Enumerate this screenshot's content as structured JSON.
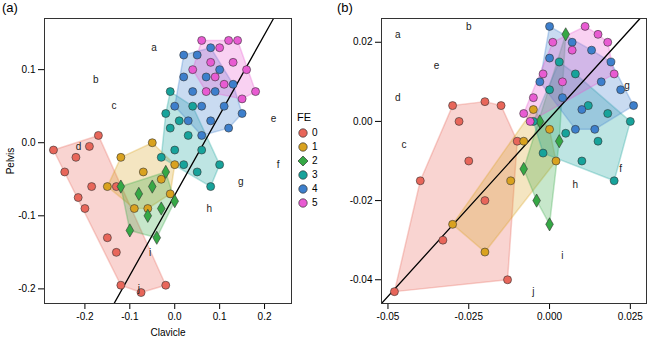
{
  "chart_data": [
    {
      "type": "scatter",
      "title": "(a)",
      "xlabel": "Clavicle",
      "ylabel": "Pelvis",
      "xlim": [
        -0.29,
        0.26
      ],
      "ylim": [
        -0.22,
        0.17
      ],
      "xticks": [
        -0.2,
        -0.1,
        {
          "value": 0,
          "label": "0.0"
        },
        0.1,
        0.2
      ],
      "yticks": [
        -0.2,
        -0.1,
        {
          "value": 0,
          "label": "0.0"
        },
        0.1
      ],
      "legend": "right",
      "legend_title": "FE",
      "series": [
        {
          "name": "0",
          "color": "#e8665a",
          "marker": "circle",
          "x": [
            -0.27,
            -0.245,
            -0.22,
            -0.19,
            -0.17,
            -0.215,
            -0.2,
            -0.185,
            -0.15,
            -0.13,
            -0.12,
            -0.075,
            -0.02,
            -0.13
          ],
          "y": [
            -0.01,
            -0.04,
            -0.02,
            -0.005,
            0.01,
            -0.075,
            -0.09,
            -0.06,
            -0.13,
            -0.15,
            -0.195,
            -0.205,
            -0.195,
            -0.06
          ]
        },
        {
          "name": "1",
          "color": "#d9a21f",
          "marker": "circle",
          "x": [
            -0.15,
            -0.12,
            -0.09,
            -0.07,
            -0.05,
            -0.03,
            -0.01,
            0.0,
            -0.06
          ],
          "y": [
            -0.06,
            -0.02,
            -0.09,
            -0.04,
            0.0,
            -0.05,
            -0.07,
            -0.03,
            -0.09
          ]
        },
        {
          "name": "2",
          "color": "#35a845",
          "marker": "diamond",
          "x": [
            -0.1,
            -0.08,
            -0.06,
            -0.05,
            -0.04,
            -0.03,
            -0.02,
            0.0,
            -0.12
          ],
          "y": [
            -0.12,
            -0.07,
            -0.1,
            -0.06,
            -0.13,
            -0.09,
            -0.04,
            -0.08,
            -0.06
          ]
        },
        {
          "name": "3",
          "color": "#17a39b",
          "marker": "circle",
          "x": [
            -0.03,
            -0.01,
            0.0,
            0.01,
            0.02,
            0.03,
            0.05,
            0.06,
            0.08,
            0.1,
            -0.02,
            0.04,
            -0.01
          ],
          "y": [
            -0.02,
            0.02,
            -0.01,
            0.03,
            -0.03,
            0.01,
            -0.04,
            -0.01,
            -0.06,
            -0.03,
            0.04,
            0.05,
            0.07
          ]
        },
        {
          "name": "4",
          "color": "#3d7fcc",
          "marker": "circle",
          "x": [
            0.0,
            0.02,
            0.04,
            0.05,
            0.06,
            0.07,
            0.08,
            0.09,
            0.1,
            0.11,
            0.12,
            0.13,
            0.03,
            0.06,
            0.15,
            0.02,
            0.08
          ],
          "y": [
            0.05,
            0.09,
            0.07,
            0.12,
            0.05,
            0.09,
            0.03,
            0.07,
            0.1,
            0.05,
            0.02,
            0.08,
            0.03,
            0.01,
            0.04,
            0.12,
            0.13
          ]
        },
        {
          "name": "5",
          "color": "#e85bd2",
          "marker": "circle",
          "x": [
            0.04,
            0.06,
            0.08,
            0.1,
            0.11,
            0.13,
            0.14,
            0.16,
            0.18,
            0.15,
            0.12,
            0.09,
            0.07
          ],
          "y": [
            0.1,
            0.14,
            0.11,
            0.13,
            0.08,
            0.11,
            0.14,
            0.1,
            0.07,
            0.06,
            0.14,
            0.09,
            0.07
          ]
        }
      ],
      "line": {
        "x": [
          -0.135,
          0.22
        ],
        "y": [
          -0.22,
          0.17
        ]
      },
      "annotations": [
        {
          "text": "a",
          "x": -0.046,
          "y": 0.13
        },
        {
          "text": "b",
          "x": -0.176,
          "y": 0.086
        },
        {
          "text": "c",
          "x": -0.135,
          "y": 0.05
        },
        {
          "text": "d",
          "x": -0.214,
          "y": -0.005
        },
        {
          "text": "e",
          "x": 0.22,
          "y": 0.033
        },
        {
          "text": "f",
          "x": 0.23,
          "y": -0.03
        },
        {
          "text": "g",
          "x": 0.147,
          "y": -0.053
        },
        {
          "text": "h",
          "x": 0.077,
          "y": -0.09
        },
        {
          "text": "i",
          "x": -0.055,
          "y": -0.15
        },
        {
          "text": "j",
          "x": -0.08,
          "y": -0.2
        }
      ]
    },
    {
      "type": "scatter",
      "title": "(b)",
      "xlim": [
        -0.052,
        0.03
      ],
      "ylim": [
        -0.046,
        0.026
      ],
      "xticks": [
        -0.05,
        -0.025,
        {
          "value": 0,
          "label": "0.000"
        },
        0.025
      ],
      "yticks": [
        -0.04,
        -0.02,
        {
          "value": 0,
          "label": "0.00"
        },
        0.02
      ],
      "series": [
        {
          "name": "0",
          "color": "#e8665a",
          "marker": "circle",
          "x": [
            -0.048,
            -0.033,
            -0.03,
            -0.028,
            -0.02,
            -0.02,
            -0.015,
            -0.013,
            -0.04,
            -0.025,
            -0.01
          ],
          "y": [
            -0.043,
            -0.03,
            0.004,
            0.0,
            0.005,
            -0.02,
            0.004,
            -0.04,
            -0.015,
            -0.01,
            -0.005
          ]
        },
        {
          "name": "1",
          "color": "#d9a21f",
          "marker": "circle",
          "x": [
            -0.03,
            -0.02,
            -0.008,
            -0.005,
            0.0,
            -0.012,
            0.002
          ],
          "y": [
            -0.026,
            -0.033,
            -0.005,
            0.003,
            -0.002,
            -0.015,
            -0.01
          ]
        },
        {
          "name": "2",
          "color": "#35a845",
          "marker": "diamond",
          "x": [
            -0.008,
            -0.004,
            0.0,
            0.003,
            0.005,
            -0.003
          ],
          "y": [
            -0.012,
            -0.02,
            -0.026,
            -0.005,
            0.022,
            0.0
          ]
        },
        {
          "name": "3",
          "color": "#17a39b",
          "marker": "circle",
          "x": [
            -0.005,
            0.0,
            0.005,
            0.008,
            0.01,
            0.012,
            0.015,
            0.018,
            0.02,
            0.003,
            -0.002,
            0.025
          ],
          "y": [
            0.0,
            0.008,
            -0.003,
            0.012,
            -0.01,
            0.004,
            -0.005,
            0.002,
            -0.015,
            0.015,
            -0.008,
            0.0
          ]
        },
        {
          "name": "4",
          "color": "#3d7fcc",
          "marker": "circle",
          "x": [
            -0.003,
            0.0,
            0.004,
            0.007,
            0.01,
            0.013,
            0.016,
            0.019,
            0.022,
            0.026,
            0.008,
            0.0,
            0.014
          ],
          "y": [
            0.01,
            0.016,
            0.006,
            0.02,
            0.003,
            0.018,
            0.01,
            0.015,
            0.008,
            0.004,
            -0.002,
            0.024,
            -0.002
          ]
        },
        {
          "name": "5",
          "color": "#e85bd2",
          "marker": "circle",
          "x": [
            -0.008,
            -0.005,
            -0.002,
            0.001,
            0.004,
            0.007,
            0.011,
            0.015,
            0.018,
            0.02,
            -0.006
          ],
          "y": [
            0.002,
            0.006,
            0.012,
            0.02,
            0.01,
            0.018,
            0.024,
            0.022,
            0.02,
            0.012,
            0.0
          ]
        }
      ],
      "line": {
        "x": [
          -0.052,
          0.028
        ],
        "y": [
          -0.046,
          0.026
        ]
      },
      "annotations": [
        {
          "text": "a",
          "x": -0.047,
          "y": 0.022
        },
        {
          "text": "b",
          "x": -0.025,
          "y": 0.024
        },
        {
          "text": "c",
          "x": -0.045,
          "y": -0.006
        },
        {
          "text": "d",
          "x": -0.047,
          "y": 0.006
        },
        {
          "text": "e",
          "x": -0.035,
          "y": 0.014
        },
        {
          "text": "f",
          "x": 0.022,
          "y": -0.012
        },
        {
          "text": "g",
          "x": 0.024,
          "y": 0.009
        },
        {
          "text": "h",
          "x": 0.008,
          "y": -0.016
        },
        {
          "text": "i",
          "x": 0.004,
          "y": -0.034
        },
        {
          "text": "j",
          "x": -0.005,
          "y": -0.043
        }
      ]
    }
  ]
}
